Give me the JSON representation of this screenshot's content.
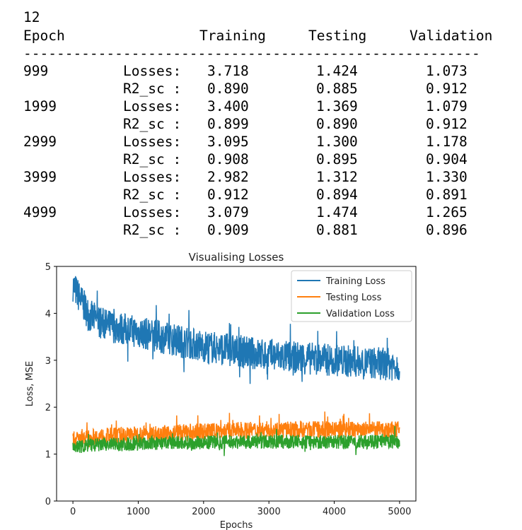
{
  "output": {
    "first_line": "12",
    "header": {
      "epoch": "Epoch",
      "training": "Training",
      "testing": "Testing",
      "validation": "Validation"
    },
    "separator": "-------------------------------------------------------",
    "rows": [
      {
        "epoch": "999",
        "label": "Losses:",
        "training": "3.718",
        "testing": "1.424",
        "validation": "1.073"
      },
      {
        "epoch": "",
        "label": "R2_sc :",
        "training": "0.890",
        "testing": "0.885",
        "validation": "0.912"
      },
      {
        "epoch": "1999",
        "label": "Losses:",
        "training": "3.400",
        "testing": "1.369",
        "validation": "1.079"
      },
      {
        "epoch": "",
        "label": "R2_sc :",
        "training": "0.899",
        "testing": "0.890",
        "validation": "0.912"
      },
      {
        "epoch": "2999",
        "label": "Losses:",
        "training": "3.095",
        "testing": "1.300",
        "validation": "1.178"
      },
      {
        "epoch": "",
        "label": "R2_sc :",
        "training": "0.908",
        "testing": "0.895",
        "validation": "0.904"
      },
      {
        "epoch": "3999",
        "label": "Losses:",
        "training": "2.982",
        "testing": "1.312",
        "validation": "1.330"
      },
      {
        "epoch": "",
        "label": "R2_sc :",
        "training": "0.912",
        "testing": "0.894",
        "validation": "0.891"
      },
      {
        "epoch": "4999",
        "label": "Losses:",
        "training": "3.079",
        "testing": "1.474",
        "validation": "1.265"
      },
      {
        "epoch": "",
        "label": "R2_sc :",
        "training": "0.909",
        "testing": "0.881",
        "validation": "0.896"
      }
    ]
  },
  "chart_data": {
    "type": "line",
    "title": "Visualising Losses",
    "xlabel": "Epochs",
    "ylabel": "Loss, MSE",
    "xlim": [
      -250,
      5250
    ],
    "ylim": [
      0,
      5
    ],
    "xticks": [
      "0",
      "1000",
      "2000",
      "3000",
      "4000",
      "5000"
    ],
    "yticks": [
      "0",
      "1",
      "2",
      "3",
      "4",
      "5"
    ],
    "grid": false,
    "legend": "top-right",
    "x": [
      0,
      250,
      500,
      1000,
      1500,
      2000,
      2500,
      3000,
      3500,
      4000,
      4500,
      5000
    ],
    "series": [
      {
        "name": "Training Loss",
        "color": "#1f77b4",
        "values": [
          4.6,
          3.95,
          3.75,
          3.6,
          3.45,
          3.3,
          3.2,
          3.1,
          3.05,
          3.0,
          2.95,
          2.9
        ],
        "noise": 0.35
      },
      {
        "name": "Testing Loss",
        "color": "#ff7f0e",
        "values": [
          1.3,
          1.35,
          1.38,
          1.42,
          1.45,
          1.48,
          1.5,
          1.52,
          1.52,
          1.52,
          1.52,
          1.52
        ],
        "noise": 0.18
      },
      {
        "name": "Validation Loss",
        "color": "#2ca02c",
        "values": [
          1.15,
          1.18,
          1.2,
          1.22,
          1.24,
          1.25,
          1.26,
          1.26,
          1.26,
          1.26,
          1.26,
          1.26
        ],
        "noise": 0.15
      }
    ]
  }
}
